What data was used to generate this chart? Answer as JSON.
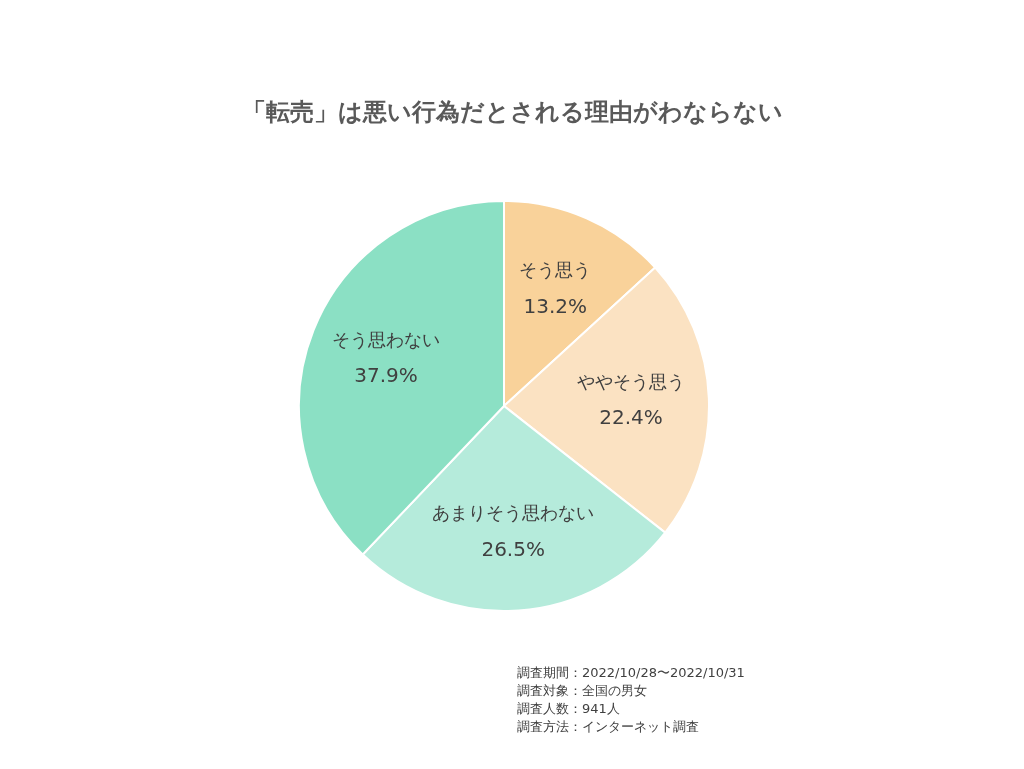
{
  "chart_data": {
    "type": "pie",
    "title": "「転売」は悪い行為だとされる理由がわならない",
    "categories": [
      "そう思う",
      "ややそう思う",
      "あまりそう思わない",
      "そう思わない"
    ],
    "values": [
      13.2,
      22.4,
      26.5,
      37.9
    ],
    "value_labels": [
      "13.2%",
      "22.4%",
      "26.5%",
      "37.9%"
    ],
    "colors": [
      "#f9d29a",
      "#fbe2c2",
      "#b5ebdb",
      "#8be0c4"
    ],
    "legend": false,
    "annotations": [
      "調査期間：2022/10/28〜2022/10/31",
      "調査対象：全国の男女",
      "調査人数：941人",
      "調査方法：インターネット調査"
    ]
  }
}
